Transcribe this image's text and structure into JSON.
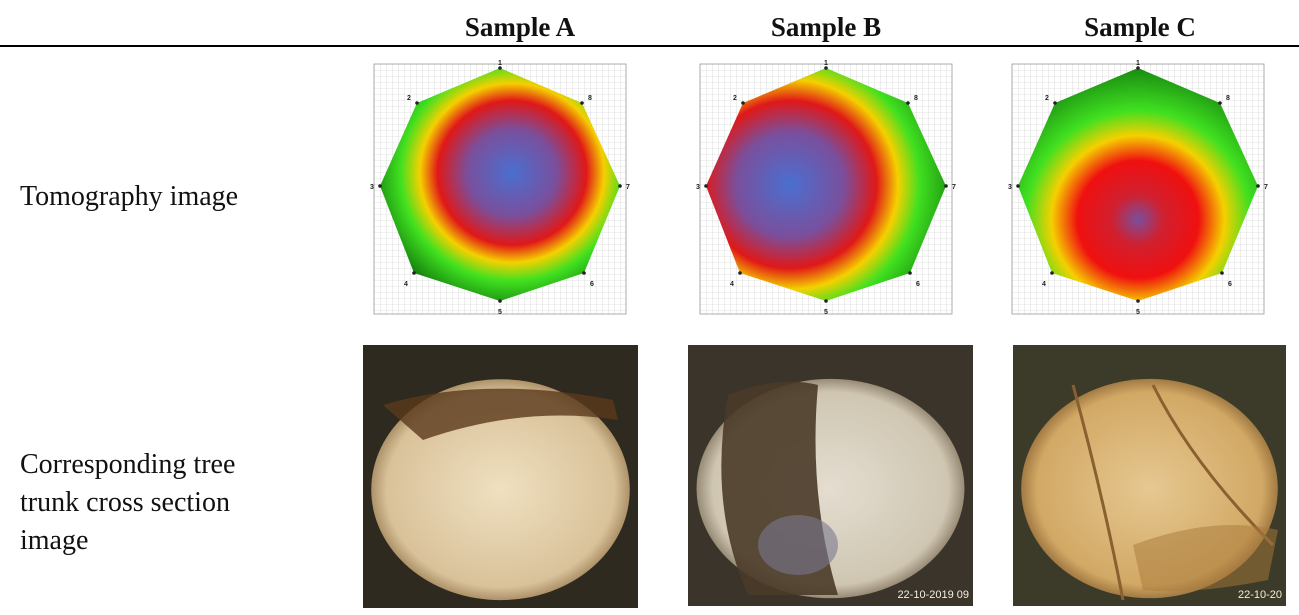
{
  "header": {
    "columns": [
      "Sample A",
      "Sample B",
      "Sample C"
    ]
  },
  "rows": [
    {
      "label": "Tomography image"
    },
    {
      "label": "Corresponding tree trunk cross section image"
    }
  ],
  "sensor_labels": [
    "1",
    "2",
    "3",
    "4",
    "5",
    "6",
    "7",
    "8"
  ],
  "photo_stamps": {
    "B": "22-10-2019 09",
    "C": "22-10-20"
  }
}
